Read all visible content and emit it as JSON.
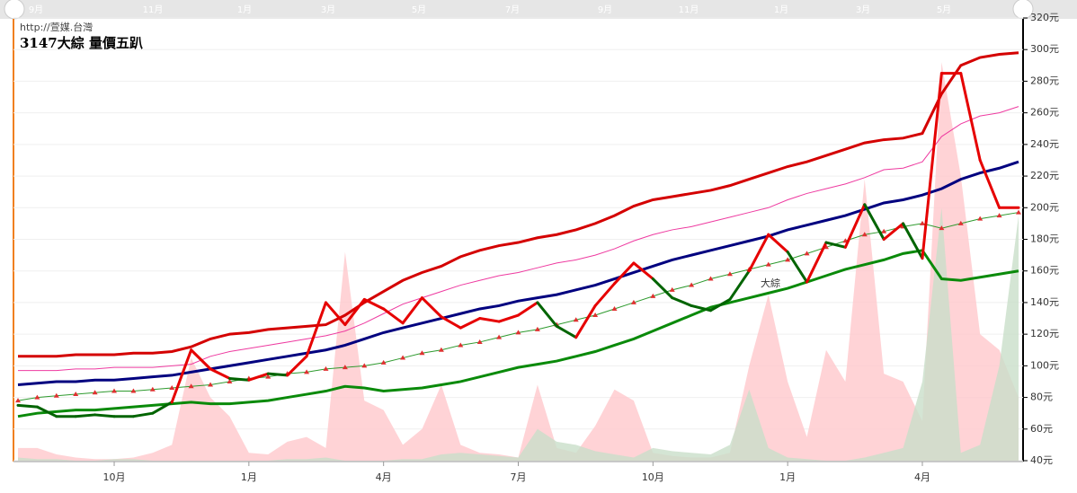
{
  "chart_data": {
    "type": "stock-bands",
    "url": "http://萱媒.台灣",
    "title": "3147大綜 量價五趴",
    "annotation": "大綜",
    "navigator_labels": [
      "9月",
      "11月",
      "1月",
      "3月",
      "5月",
      "7月",
      "9月",
      "11月",
      "1月",
      "3月",
      "5月"
    ],
    "categories": [
      null,
      null,
      null,
      null,
      null,
      "10月",
      null,
      null,
      null,
      null,
      null,
      null,
      "1月",
      null,
      null,
      null,
      null,
      null,
      null,
      "4月",
      null,
      null,
      null,
      null,
      null,
      null,
      "7月",
      null,
      null,
      null,
      null,
      null,
      null,
      "10月",
      null,
      null,
      null,
      null,
      null,
      null,
      "1月",
      null,
      null,
      null,
      null,
      null,
      null,
      "4月",
      null,
      null,
      null,
      null,
      null
    ],
    "ylim": [
      40,
      320
    ],
    "yticks": [
      {
        "value": 40,
        "label": "40元"
      },
      {
        "value": 60,
        "label": "60元"
      },
      {
        "value": 80,
        "label": "80元"
      },
      {
        "value": 100,
        "label": "100元"
      },
      {
        "value": 120,
        "label": "120元"
      },
      {
        "value": 140,
        "label": "140元"
      },
      {
        "value": 160,
        "label": "160元"
      },
      {
        "value": 180,
        "label": "180元"
      },
      {
        "value": 200,
        "label": "200元"
      },
      {
        "value": 220,
        "label": "220元"
      },
      {
        "value": 240,
        "label": "240元"
      },
      {
        "value": 260,
        "label": "260元"
      },
      {
        "value": 280,
        "label": "280元"
      },
      {
        "value": 300,
        "label": "300元"
      },
      {
        "value": 320,
        "label": "320元"
      }
    ],
    "grid": true,
    "series": [
      {
        "kind": "area",
        "color": "#ffc8cc",
        "values": [
          48,
          48,
          44,
          42,
          41,
          41,
          42,
          45,
          50,
          105,
          80,
          68,
          45,
          44,
          52,
          55,
          48,
          172,
          78,
          72,
          50,
          60,
          88,
          50,
          45,
          44,
          42,
          88,
          48,
          45,
          62,
          85,
          78,
          45,
          43,
          42,
          42,
          45,
          100,
          145,
          90,
          55,
          110,
          90,
          218,
          95,
          90,
          65,
          292,
          220,
          120,
          110,
          80
        ]
      },
      {
        "kind": "area",
        "color": "#c9dfc9",
        "values": [
          42,
          41,
          41,
          40,
          40,
          41,
          41,
          40,
          40,
          40,
          40,
          40,
          40,
          40,
          41,
          41,
          42,
          40,
          40,
          40,
          41,
          41,
          44,
          45,
          44,
          43,
          42,
          60,
          52,
          50,
          46,
          44,
          42,
          48,
          46,
          45,
          44,
          50,
          85,
          48,
          42,
          41,
          40,
          40,
          42,
          45,
          48,
          90,
          200,
          45,
          50,
          100,
          195
        ]
      },
      {
        "kind": "line",
        "color": "#d40000",
        "width": 3,
        "values": [
          106,
          106,
          106,
          107,
          107,
          107,
          108,
          108,
          109,
          112,
          117,
          120,
          121,
          123,
          124,
          125,
          126,
          132,
          140,
          147,
          154,
          159,
          163,
          169,
          173,
          176,
          178,
          181,
          183,
          186,
          190,
          195,
          201,
          205,
          207,
          209,
          211,
          214,
          218,
          222,
          226,
          229,
          233,
          237,
          241,
          243,
          244,
          247,
          272,
          290,
          295,
          297,
          298
        ]
      },
      {
        "kind": "line",
        "color": "#ee3aa0",
        "width": 1,
        "values": [
          97,
          97,
          97,
          98,
          98,
          99,
          99,
          99,
          100,
          101,
          106,
          109,
          111,
          113,
          115,
          117,
          119,
          122,
          127,
          133,
          139,
          143,
          147,
          151,
          154,
          157,
          159,
          162,
          165,
          167,
          170,
          174,
          179,
          183,
          186,
          188,
          191,
          194,
          197,
          200,
          205,
          209,
          212,
          215,
          219,
          224,
          225,
          229,
          245,
          253,
          258,
          260,
          264
        ]
      },
      {
        "kind": "line",
        "color": "#00007f",
        "width": 3,
        "values": [
          88,
          89,
          90,
          90,
          91,
          91,
          92,
          93,
          94,
          96,
          98,
          100,
          102,
          104,
          106,
          108,
          110,
          113,
          117,
          121,
          124,
          127,
          130,
          133,
          136,
          138,
          141,
          143,
          145,
          148,
          151,
          155,
          159,
          163,
          167,
          170,
          173,
          176,
          179,
          182,
          186,
          189,
          192,
          195,
          199,
          203,
          205,
          208,
          212,
          218,
          222,
          225,
          229
        ]
      },
      {
        "kind": "line",
        "color": "#0a8a0a",
        "width": 3,
        "values": [
          68,
          70,
          71,
          72,
          72,
          73,
          74,
          75,
          76,
          77,
          76,
          76,
          77,
          78,
          80,
          82,
          84,
          87,
          86,
          84,
          85,
          86,
          88,
          90,
          93,
          96,
          99,
          101,
          103,
          106,
          109,
          113,
          117,
          122,
          127,
          132,
          137,
          140,
          143,
          146,
          149,
          153,
          157,
          161,
          164,
          167,
          171,
          173,
          155,
          154,
          156,
          158,
          160
        ]
      },
      {
        "kind": "triangles",
        "color": "#2e9a2e",
        "marker_color": "#e03030",
        "values": [
          78,
          80,
          81,
          82,
          83,
          84,
          84,
          85,
          86,
          87,
          88,
          90,
          92,
          93,
          95,
          96,
          98,
          99,
          100,
          102,
          105,
          108,
          110,
          113,
          115,
          118,
          121,
          123,
          126,
          129,
          132,
          136,
          140,
          144,
          148,
          151,
          155,
          158,
          161,
          164,
          167,
          171,
          175,
          179,
          183,
          185,
          188,
          190,
          187,
          190,
          193,
          195,
          197
        ]
      },
      {
        "kind": "price",
        "color": "#e60000",
        "down_color": "#006400",
        "width": 3,
        "values": [
          75,
          74,
          68,
          68,
          69,
          68,
          68,
          70,
          77,
          110,
          98,
          92,
          91,
          95,
          94,
          106,
          140,
          126,
          142,
          136,
          127,
          143,
          131,
          124,
          130,
          128,
          132,
          140,
          125,
          118,
          138,
          152,
          165,
          155,
          143,
          138,
          135,
          142,
          160,
          183,
          172,
          153,
          178,
          175,
          202,
          180,
          190,
          168,
          285,
          285,
          230,
          200,
          200
        ]
      }
    ]
  }
}
